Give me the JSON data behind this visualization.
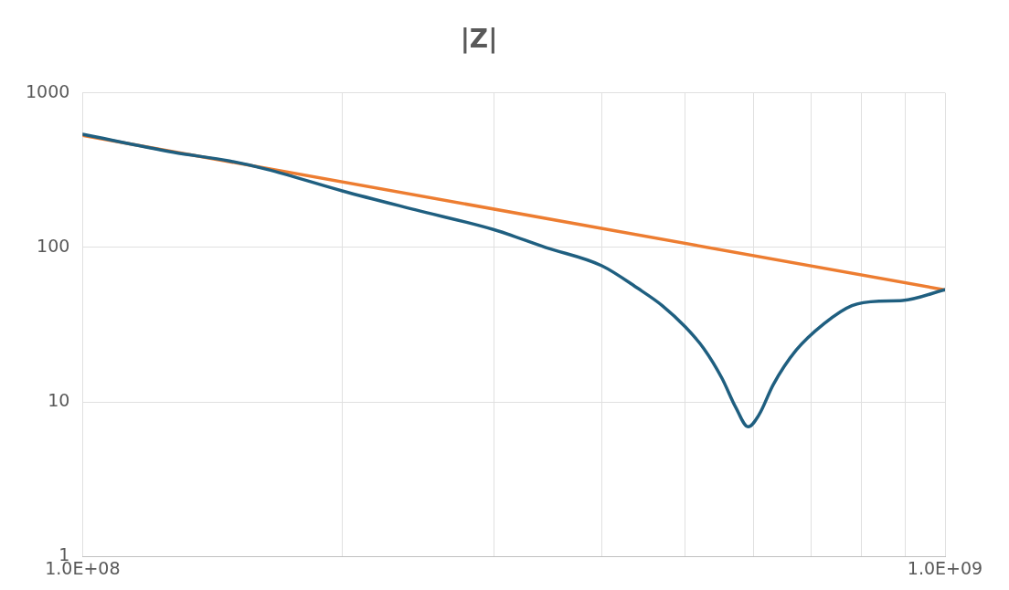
{
  "chart_data": {
    "type": "line",
    "title": "|Z|",
    "log": "xy",
    "grid": true,
    "legend": false,
    "marker": "none",
    "line_style": "solid",
    "xlim": [
      100000000,
      1000000000
    ],
    "xticks": [
      {
        "value": 100000000,
        "label": "1.0E+08"
      },
      {
        "value": 200000000,
        "label": null
      },
      {
        "value": 300000000,
        "label": null
      },
      {
        "value": 400000000,
        "label": null
      },
      {
        "value": 500000000,
        "label": null
      },
      {
        "value": 600000000,
        "label": null
      },
      {
        "value": 700000000,
        "label": null
      },
      {
        "value": 800000000,
        "label": null
      },
      {
        "value": 900000000,
        "label": null
      },
      {
        "value": 1000000000,
        "label": "1.0E+09"
      }
    ],
    "ylim": [
      1,
      1000
    ],
    "yticks": [
      1,
      10,
      100,
      1000
    ],
    "series": [
      {
        "color": "#1f5f80",
        "x": [
          100000000,
          127500000,
          148000000,
          163500000,
          200000000,
          243000000,
          300000000,
          344000000,
          400000000,
          441000000,
          470000000,
          500000000,
          525000000,
          551000000,
          572000000,
          591000000,
          609000000,
          632000000,
          672000000,
          724000000,
          780000000,
          841000000,
          893000000,
          1000000000
        ],
        "values": [
          539,
          412,
          362,
          320,
          232,
          175,
          130,
          100,
          76,
          54,
          42,
          30.5,
          22.2,
          14.3,
          9.2,
          6.9,
          8.3,
          12.9,
          21.6,
          32.1,
          42,
          44.9,
          45.3,
          53.2
        ]
      },
      {
        "color": "#ed7d31",
        "x": [
          100000000,
          1000000000
        ],
        "values": [
          530,
          53
        ]
      }
    ]
  }
}
